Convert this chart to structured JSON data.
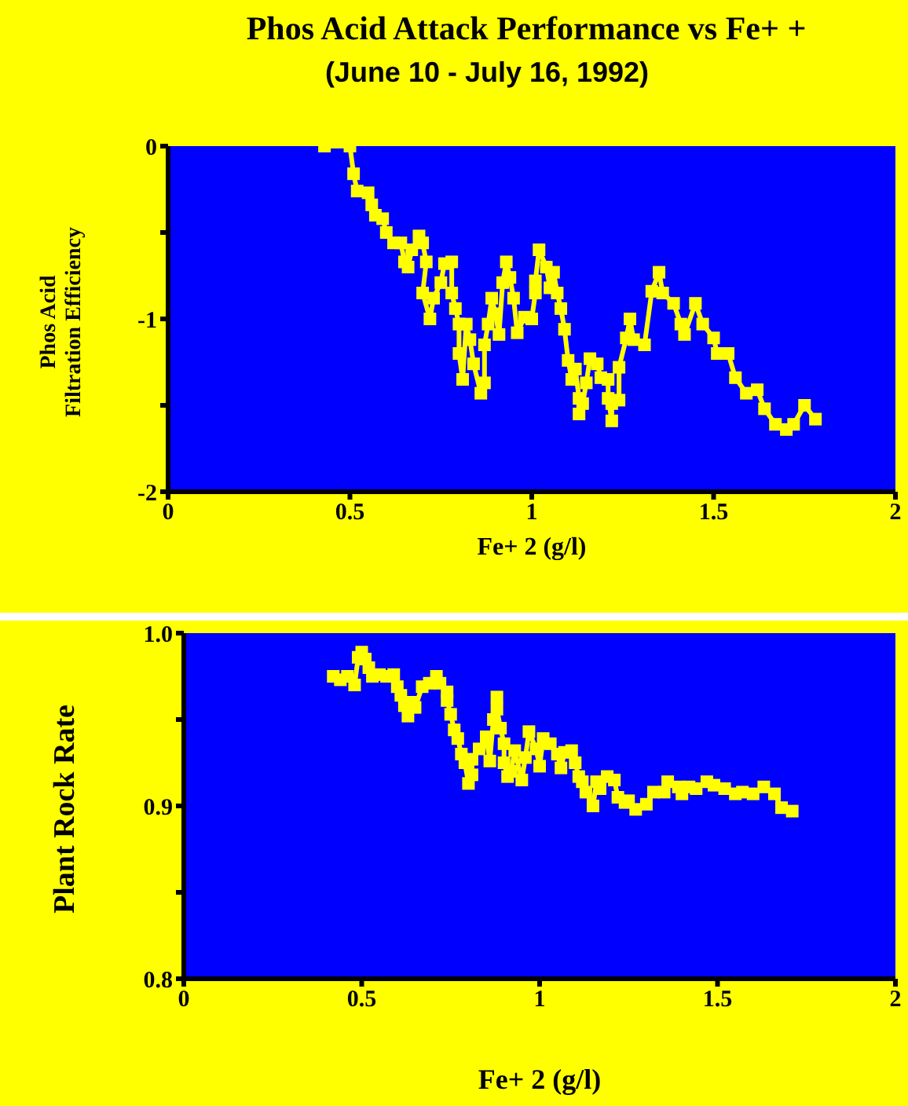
{
  "chart_data": [
    {
      "type": "line",
      "title": "Phos Acid Attack Performance vs Fe+ +",
      "subtitle": "(June 10 - July 16, 1992)",
      "xlabel": "Fe+ 2 (g/l)",
      "ylabel": "Phos Acid\nFiltration Efficiency",
      "marker": "square",
      "line_style": "solid",
      "grid": false,
      "legend": false,
      "xlim": [
        0,
        2
      ],
      "xticks": [
        0,
        0.5,
        1,
        1.5,
        2
      ],
      "ylim": [
        -2,
        0
      ],
      "yticks": [
        -2,
        {
          "value": -1.5,
          "label": null
        },
        -1,
        {
          "value": -0.5,
          "label": null
        },
        0
      ],
      "series": [
        {
          "color": "#ffff00",
          "x": [
            0.43,
            0.5,
            0.51,
            0.52,
            0.55,
            0.56,
            0.57,
            0.59,
            0.6,
            0.62,
            0.64,
            0.65,
            0.66,
            0.67,
            0.69,
            0.7,
            0.71,
            0.7,
            0.72,
            0.73,
            0.75,
            0.76,
            0.78,
            0.78,
            0.79,
            0.8,
            0.8,
            0.81,
            0.82,
            0.83,
            0.84,
            0.86,
            0.87,
            0.87,
            0.88,
            0.89,
            0.9,
            0.91,
            0.92,
            0.93,
            0.94,
            0.95,
            0.96,
            0.98,
            1.0,
            1.01,
            1.01,
            1.02,
            1.04,
            1.05,
            1.06,
            1.07,
            1.08,
            1.09,
            1.1,
            1.11,
            1.12,
            1.13,
            1.13,
            1.14,
            1.15,
            1.16,
            1.18,
            1.19,
            1.21,
            1.21,
            1.22,
            1.22,
            1.24,
            1.24,
            1.26,
            1.27,
            1.28,
            1.31,
            1.33,
            1.35,
            1.36,
            1.39,
            1.41,
            1.42,
            1.45,
            1.47,
            1.5,
            1.51,
            1.54,
            1.56,
            1.59,
            1.62,
            1.64,
            1.67,
            1.7,
            1.72,
            1.75,
            1.78
          ],
          "values": [
            0,
            0,
            -0.16,
            -0.26,
            -0.27,
            -0.34,
            -0.4,
            -0.42,
            -0.5,
            -0.56,
            -0.56,
            -0.67,
            -0.7,
            -0.6,
            -0.52,
            -0.56,
            -0.67,
            -0.85,
            -1.0,
            -0.88,
            -0.79,
            -0.68,
            -0.67,
            -0.85,
            -0.94,
            -1.03,
            -1.2,
            -1.35,
            -1.03,
            -1.12,
            -1.26,
            -1.43,
            -1.37,
            -1.15,
            -1.03,
            -0.88,
            -0.97,
            -1.09,
            -0.79,
            -0.67,
            -0.76,
            -0.88,
            -1.08,
            -0.99,
            -1.0,
            -0.85,
            -0.78,
            -0.6,
            -0.7,
            -0.82,
            -0.73,
            -0.85,
            -0.94,
            -1.06,
            -1.24,
            -1.35,
            -1.29,
            -1.46,
            -1.55,
            -1.49,
            -1.37,
            -1.23,
            -1.26,
            -1.34,
            -1.35,
            -1.46,
            -1.59,
            -1.49,
            -1.47,
            -1.28,
            -1.11,
            -1.0,
            -1.12,
            -1.15,
            -0.84,
            -0.73,
            -0.85,
            -0.91,
            -1.03,
            -1.09,
            -0.91,
            -1.03,
            -1.11,
            -1.2,
            -1.2,
            -1.34,
            -1.43,
            -1.41,
            -1.52,
            -1.61,
            -1.64,
            -1.61,
            -1.5,
            -1.58
          ]
        }
      ]
    },
    {
      "type": "line",
      "xlabel": "Fe+ 2 (g/l)",
      "ylabel": "Plant Rock Rate",
      "marker": "square",
      "line_style": "solid",
      "grid": false,
      "legend": false,
      "xlim": [
        0,
        2
      ],
      "xticks": [
        0,
        0.5,
        1,
        1.5,
        2
      ],
      "ylim": [
        0.8,
        1
      ],
      "yticks": [
        {
          "value": 0.8,
          "label": "0.8"
        },
        {
          "value": 0.85,
          "label": null
        },
        {
          "value": 0.9,
          "label": "0.9"
        },
        {
          "value": 0.95,
          "label": null
        },
        {
          "value": 1,
          "label": "1.0"
        }
      ],
      "series": [
        {
          "color": "#ffff00",
          "x": [
            0.42,
            0.44,
            0.46,
            0.48,
            0.49,
            0.5,
            0.51,
            0.52,
            0.53,
            0.55,
            0.57,
            0.59,
            0.6,
            0.61,
            0.62,
            0.63,
            0.64,
            0.65,
            0.67,
            0.69,
            0.71,
            0.72,
            0.74,
            0.74,
            0.75,
            0.76,
            0.77,
            0.78,
            0.79,
            0.8,
            0.81,
            0.81,
            0.83,
            0.85,
            0.86,
            0.87,
            0.88,
            0.88,
            0.89,
            0.9,
            0.9,
            0.91,
            0.92,
            0.93,
            0.95,
            0.96,
            0.97,
            0.99,
            1.0,
            1.01,
            1.03,
            1.05,
            1.06,
            1.07,
            1.09,
            1.1,
            1.11,
            1.12,
            1.13,
            1.15,
            1.16,
            1.17,
            1.19,
            1.21,
            1.22,
            1.24,
            1.25,
            1.27,
            1.3,
            1.32,
            1.35,
            1.36,
            1.39,
            1.4,
            1.42,
            1.44,
            1.47,
            1.49,
            1.52,
            1.55,
            1.57,
            1.6,
            1.63,
            1.66,
            1.68,
            1.71
          ],
          "values": [
            0.975,
            0.973,
            0.975,
            0.97,
            0.986,
            0.989,
            0.985,
            0.98,
            0.975,
            0.976,
            0.975,
            0.976,
            0.969,
            0.964,
            0.958,
            0.952,
            0.96,
            0.957,
            0.969,
            0.971,
            0.975,
            0.971,
            0.966,
            0.961,
            0.953,
            0.944,
            0.939,
            0.93,
            0.925,
            0.913,
            0.918,
            0.927,
            0.933,
            0.94,
            0.926,
            0.95,
            0.963,
            0.956,
            0.945,
            0.936,
            0.925,
            0.917,
            0.92,
            0.932,
            0.915,
            0.928,
            0.943,
            0.933,
            0.923,
            0.939,
            0.936,
            0.93,
            0.922,
            0.931,
            0.932,
            0.925,
            0.917,
            0.914,
            0.908,
            0.9,
            0.914,
            0.91,
            0.917,
            0.915,
            0.905,
            0.902,
            0.903,
            0.898,
            0.901,
            0.908,
            0.908,
            0.914,
            0.911,
            0.907,
            0.911,
            0.91,
            0.914,
            0.912,
            0.91,
            0.907,
            0.908,
            0.907,
            0.911,
            0.907,
            0.899,
            0.897
          ]
        }
      ]
    }
  ]
}
